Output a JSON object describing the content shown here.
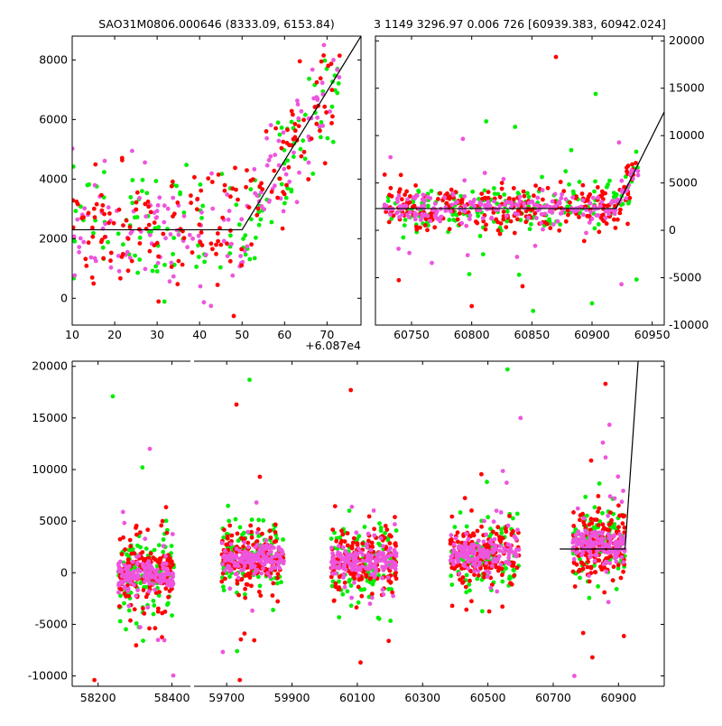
{
  "colors": {
    "red": "#ff0000",
    "green": "#00ee00",
    "magenta": "#ee55dd",
    "model": "#000000"
  },
  "chart_data": [
    {
      "type": "scatter",
      "title": "SAO31M0806.000646 (8333.09, 6153.84)",
      "x_offset_label": "+6.087e4",
      "xlim": [
        10,
        78
      ],
      "ylim": [
        -900,
        8800
      ],
      "xticks": [
        10,
        20,
        30,
        40,
        50,
        60,
        70
      ],
      "yticks": [
        0,
        2000,
        4000,
        6000,
        8000
      ],
      "model_line": {
        "x": [
          10,
          50,
          78
        ],
        "y": [
          2300,
          2300,
          8800
        ]
      },
      "series": [
        {
          "name": "red",
          "color": "#ff0000",
          "points": 170
        },
        {
          "name": "green",
          "color": "#00ee00",
          "points": 140
        },
        {
          "name": "magenta",
          "color": "#ee55dd",
          "points": 150
        }
      ]
    },
    {
      "type": "scatter",
      "title": "3 1149 3296.97 0.006 726 [60939.383, 60942.024]",
      "xlim": [
        60720,
        60960
      ],
      "ylim": [
        -10000,
        20500
      ],
      "xticks": [
        60750,
        60800,
        60850,
        60900,
        60950
      ],
      "yticks": [
        -10000,
        -5000,
        0,
        5000,
        10000,
        15000,
        20000
      ],
      "yaxis_side": "right",
      "model_line": {
        "x": [
          60720,
          60920,
          60960
        ],
        "y": [
          2300,
          2300,
          12500
        ]
      },
      "series": [
        {
          "name": "red",
          "color": "#ff0000"
        },
        {
          "name": "green",
          "color": "#00ee00"
        },
        {
          "name": "magenta",
          "color": "#ee55dd"
        }
      ]
    },
    {
      "type": "scatter",
      "title": "",
      "broken_x_axis": true,
      "segments": [
        {
          "xlim": [
            58130,
            58450
          ],
          "xticks": [
            58200,
            58400
          ],
          "clusters": [
            {
              "center": 58330,
              "width": 150,
              "mean": -200
            }
          ]
        },
        {
          "xlim": [
            59600,
            61040
          ],
          "xticks": [
            59700,
            59900,
            60100,
            60300,
            60500,
            60700,
            60900
          ],
          "clusters": [
            {
              "center": 59780,
              "width": 190,
              "mean": 1400
            },
            {
              "center": 60120,
              "width": 200,
              "mean": 1100
            },
            {
              "center": 60490,
              "width": 210,
              "mean": 1800
            },
            {
              "center": 60840,
              "width": 160,
              "mean": 2700
            }
          ]
        }
      ],
      "ylim": [
        -11000,
        20500
      ],
      "yticks": [
        -10000,
        -5000,
        0,
        5000,
        10000,
        15000,
        20000
      ],
      "model_line": {
        "x": [
          60720,
          60920,
          60960
        ],
        "y": [
          2300,
          2300,
          20500
        ]
      },
      "series": [
        {
          "name": "red",
          "color": "#ff0000"
        },
        {
          "name": "green",
          "color": "#00ee00"
        },
        {
          "name": "magenta",
          "color": "#ee55dd"
        }
      ]
    }
  ]
}
